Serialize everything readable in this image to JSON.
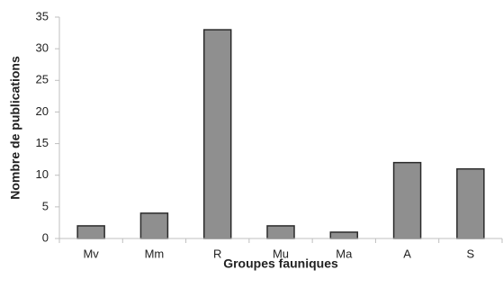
{
  "chart_data": {
    "type": "bar",
    "title": "",
    "xlabel": "Groupes fauniques",
    "ylabel": "Nombre de publications",
    "categories": [
      "Mv",
      "Mm",
      "R",
      "Mu",
      "Ma",
      "A",
      "S"
    ],
    "values": [
      2,
      4,
      33,
      2,
      1,
      12,
      11
    ],
    "ylim": [
      0,
      35
    ],
    "yticks": [
      0,
      5,
      10,
      15,
      20,
      25,
      30,
      35
    ],
    "grid": false,
    "legend": "none",
    "colors": {
      "bar_fill": "#8f8f8f",
      "bar_stroke": "#2b2b2b",
      "axis": "#bfbfbf",
      "text": "#222222"
    }
  }
}
